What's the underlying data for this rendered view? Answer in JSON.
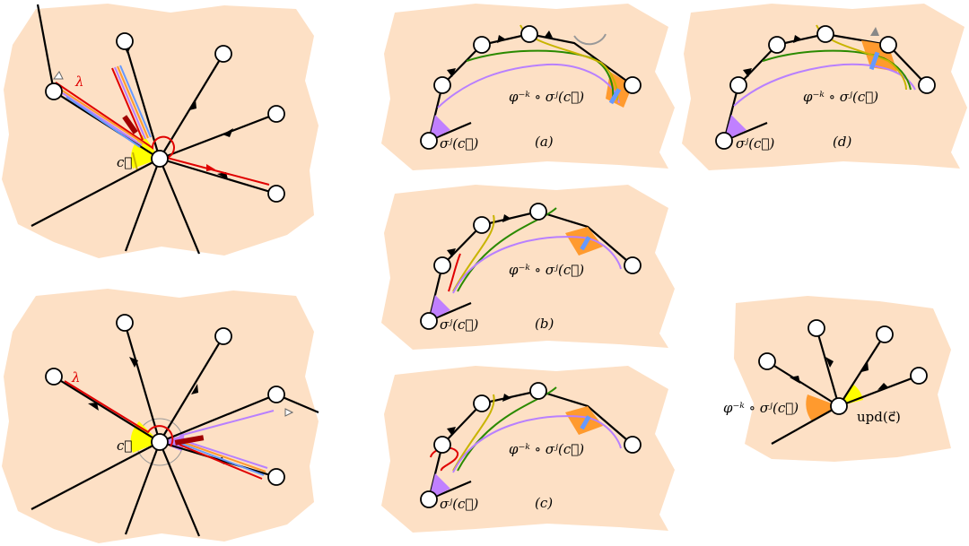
{
  "panels": {
    "top_left": {
      "corner_label": "c⃗",
      "lambda_label": "λ"
    },
    "bottom_left": {
      "corner_label": "c⃗",
      "lambda_label": "λ"
    },
    "a": {
      "caption": "(a)",
      "corner_label": "σʲ(c⃗)",
      "target_label": "φ⁻ᵏ ∘ σʲ(c⃗)"
    },
    "b": {
      "caption": "(b)",
      "corner_label": "σʲ(c⃗)",
      "target_label": "φ⁻ᵏ ∘ σʲ(c⃗)"
    },
    "c": {
      "caption": "(c)",
      "corner_label": "σʲ(c⃗)",
      "target_label": "φ⁻ᵏ ∘ σʲ(c⃗)"
    },
    "d": {
      "caption": "(d)",
      "corner_label": "σʲ(c⃗)",
      "target_label": "φ⁻ᵏ ∘ σʲ(c⃗)"
    },
    "right": {
      "left_label": "φ⁻ᵏ ∘ σʲ(c⃗)",
      "right_label": "upd(c⃗)"
    }
  },
  "colors": {
    "face": "#fde0c5",
    "edge": "#000000",
    "corner_yellow": "#ffff00",
    "corner_purple": "#c080ff",
    "corner_orange": "#ff9a2e",
    "path_red": "#e00000",
    "path_olive": "#c8b400",
    "path_green": "#2a8a00",
    "path_violet": "#b880ff",
    "path_blue": "#6699ff",
    "path_dark_red": "#a00000"
  }
}
